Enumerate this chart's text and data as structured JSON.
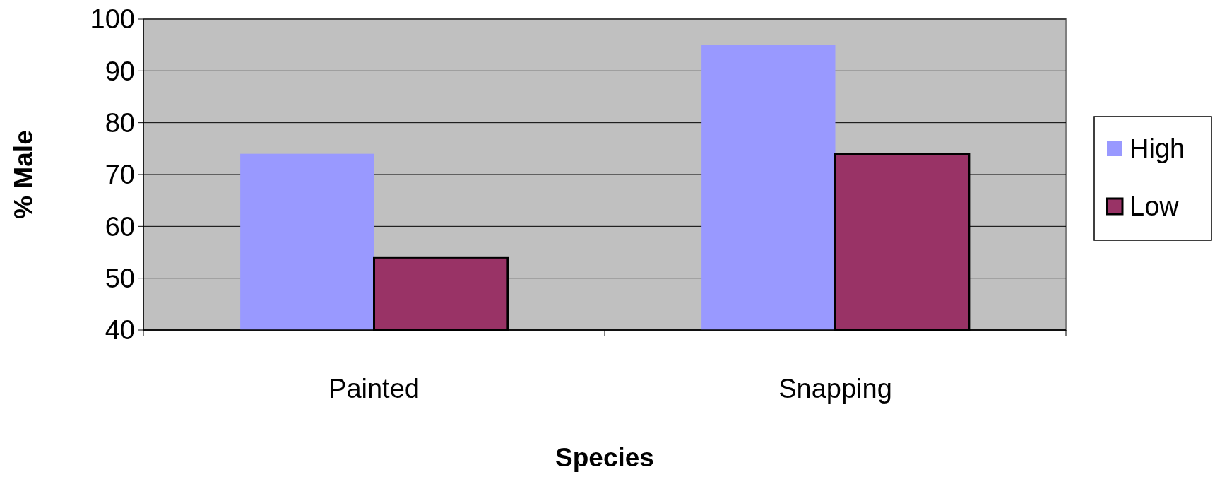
{
  "chart_data": {
    "type": "bar",
    "xlabel": "Species",
    "ylabel": "% Male",
    "categories": [
      "Painted",
      "Snapping"
    ],
    "series": [
      {
        "name": "High",
        "color": "#9999ff",
        "values": [
          74,
          95
        ]
      },
      {
        "name": "Low",
        "color": "#993366",
        "values": [
          54,
          74
        ]
      }
    ],
    "ylim": [
      40,
      100
    ],
    "yticks": [
      40,
      50,
      60,
      70,
      80,
      90,
      100
    ],
    "grid": "y",
    "legend": "right"
  }
}
